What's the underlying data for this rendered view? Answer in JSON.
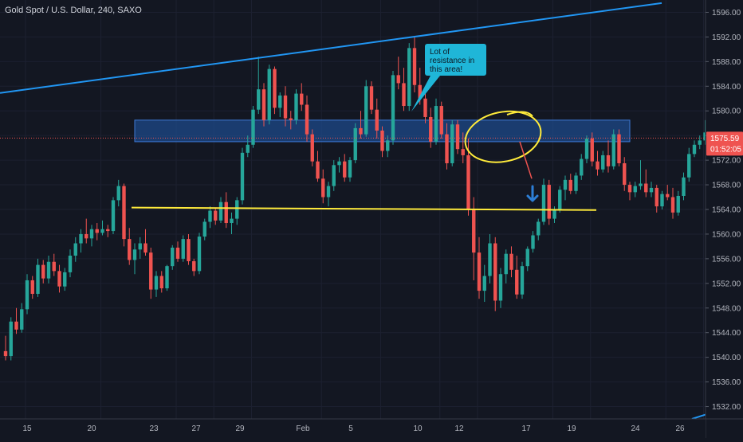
{
  "header": {
    "symbol_title": "Gold Spot / U.S. Dollar, 240, SAXO"
  },
  "colors": {
    "background": "#131722",
    "up": "#26a69a",
    "down": "#ef5350",
    "trendline": "#2196f3",
    "support": "#ffeb3b",
    "zone": "#1e4a8a",
    "price_label": "#ef5350",
    "callout": "#1fb6d8"
  },
  "annotations": {
    "callout_text": "Lot of resistance in this area!",
    "current_price": "1575.59",
    "countdown": "01:52:05"
  },
  "chart_data": {
    "type": "candlestick",
    "title": "Gold Spot / U.S. Dollar, 240, SAXO",
    "ylim": [
      1530,
      1598
    ],
    "y_ticks": [
      "1532.00",
      "1536.00",
      "1540.00",
      "1544.00",
      "1548.00",
      "1552.00",
      "1556.00",
      "1560.00",
      "1564.00",
      "1568.00",
      "1572.00",
      "1576.00",
      "1580.00",
      "1584.00",
      "1588.00",
      "1592.00",
      "1596.00"
    ],
    "y_tick_values": [
      1532,
      1536,
      1540,
      1544,
      1548,
      1552,
      1556,
      1560,
      1564,
      1568,
      1572,
      1576,
      1580,
      1584,
      1588,
      1592,
      1596
    ],
    "x_ticks": [
      "15",
      "20",
      "23",
      "27",
      "29",
      "Feb",
      "5",
      "10",
      "12",
      "17",
      "19",
      "24",
      "26"
    ],
    "x_tick_index": [
      0,
      14,
      28,
      35,
      42,
      55,
      66,
      77,
      84,
      98,
      105,
      119,
      126
    ],
    "n_slots": 137,
    "candles": [
      [
        1541.0,
        1543.5,
        1539.5,
        1540.2
      ],
      [
        1540.2,
        1546.5,
        1539.5,
        1545.8
      ],
      [
        1545.8,
        1548.0,
        1543.8,
        1544.5
      ],
      [
        1544.5,
        1548.8,
        1544.0,
        1547.8
      ],
      [
        1547.8,
        1553.5,
        1547.0,
        1552.5
      ],
      [
        1552.5,
        1553.2,
        1549.5,
        1550.3
      ],
      [
        1550.3,
        1556.0,
        1549.8,
        1555.0
      ],
      [
        1555.0,
        1555.8,
        1552.0,
        1552.8
      ],
      [
        1552.8,
        1556.5,
        1552.0,
        1555.5
      ],
      [
        1555.5,
        1556.8,
        1553.2,
        1554.0
      ],
      [
        1554.0,
        1555.0,
        1550.5,
        1551.5
      ],
      [
        1551.5,
        1554.5,
        1550.8,
        1553.8
      ],
      [
        1553.8,
        1557.5,
        1553.0,
        1556.5
      ],
      [
        1556.5,
        1559.5,
        1555.5,
        1558.5
      ],
      [
        1558.5,
        1560.8,
        1557.0,
        1560.0
      ],
      [
        1560.0,
        1562.5,
        1558.5,
        1559.3
      ],
      [
        1559.3,
        1561.5,
        1558.0,
        1560.8
      ],
      [
        1560.8,
        1561.8,
        1559.0,
        1560.2
      ],
      [
        1560.2,
        1562.2,
        1559.8,
        1560.8
      ],
      [
        1560.8,
        1561.5,
        1559.5,
        1560.5
      ],
      [
        1560.5,
        1566.0,
        1560.0,
        1565.5
      ],
      [
        1565.5,
        1568.8,
        1564.5,
        1567.8
      ],
      [
        1567.8,
        1568.2,
        1558.0,
        1559.2
      ],
      [
        1559.2,
        1561.0,
        1555.0,
        1555.8
      ],
      [
        1555.8,
        1558.5,
        1553.5,
        1557.5
      ],
      [
        1557.5,
        1559.5,
        1556.0,
        1558.5
      ],
      [
        1558.5,
        1560.8,
        1556.5,
        1557.0
      ],
      [
        1557.0,
        1557.8,
        1549.5,
        1551.0
      ],
      [
        1551.0,
        1554.0,
        1549.8,
        1553.2
      ],
      [
        1553.2,
        1554.0,
        1550.5,
        1551.2
      ],
      [
        1551.2,
        1555.0,
        1550.8,
        1554.8
      ],
      [
        1554.8,
        1558.2,
        1554.2,
        1557.8
      ],
      [
        1557.8,
        1558.8,
        1555.5,
        1556.0
      ],
      [
        1556.0,
        1559.8,
        1555.5,
        1559.2
      ],
      [
        1559.2,
        1560.0,
        1555.0,
        1555.6
      ],
      [
        1555.6,
        1556.0,
        1553.2,
        1554.0
      ],
      [
        1554.0,
        1560.2,
        1553.5,
        1559.6
      ],
      [
        1559.6,
        1562.5,
        1559.0,
        1562.0
      ],
      [
        1562.0,
        1564.5,
        1561.0,
        1563.8
      ],
      [
        1563.8,
        1564.2,
        1561.5,
        1562.2
      ],
      [
        1562.2,
        1566.0,
        1561.8,
        1565.2
      ],
      [
        1565.2,
        1566.8,
        1561.0,
        1561.8
      ],
      [
        1561.8,
        1563.5,
        1560.0,
        1562.5
      ],
      [
        1562.5,
        1566.0,
        1561.5,
        1565.5
      ],
      [
        1565.5,
        1574.0,
        1564.8,
        1573.2
      ],
      [
        1573.2,
        1576.0,
        1572.5,
        1574.5
      ],
      [
        1574.5,
        1580.8,
        1574.0,
        1580.2
      ],
      [
        1580.2,
        1588.8,
        1579.5,
        1583.5
      ],
      [
        1583.5,
        1584.5,
        1577.5,
        1578.5
      ],
      [
        1578.5,
        1587.5,
        1577.8,
        1586.8
      ],
      [
        1586.8,
        1587.2,
        1579.5,
        1580.5
      ],
      [
        1580.5,
        1583.0,
        1579.0,
        1582.5
      ],
      [
        1582.5,
        1584.0,
        1577.5,
        1578.8
      ],
      [
        1578.8,
        1580.0,
        1577.0,
        1578.5
      ],
      [
        1578.5,
        1583.5,
        1577.8,
        1582.8
      ],
      [
        1582.8,
        1584.5,
        1580.0,
        1581.0
      ],
      [
        1581.0,
        1582.5,
        1575.0,
        1576.2
      ],
      [
        1576.2,
        1577.0,
        1571.0,
        1571.8
      ],
      [
        1571.8,
        1573.5,
        1568.5,
        1569.0
      ],
      [
        1569.0,
        1570.5,
        1565.0,
        1566.0
      ],
      [
        1566.0,
        1568.5,
        1564.5,
        1567.8
      ],
      [
        1567.8,
        1572.0,
        1567.0,
        1571.2
      ],
      [
        1571.2,
        1572.5,
        1570.0,
        1571.8
      ],
      [
        1571.8,
        1573.0,
        1568.5,
        1569.2
      ],
      [
        1569.2,
        1572.5,
        1568.5,
        1572.0
      ],
      [
        1572.0,
        1578.0,
        1571.5,
        1577.2
      ],
      [
        1577.2,
        1580.0,
        1575.5,
        1576.2
      ],
      [
        1576.2,
        1585.0,
        1575.8,
        1584.0
      ],
      [
        1584.0,
        1584.8,
        1579.5,
        1580.2
      ],
      [
        1580.2,
        1582.0,
        1575.5,
        1576.8
      ],
      [
        1576.8,
        1577.5,
        1572.5,
        1573.5
      ],
      [
        1573.5,
        1576.0,
        1572.5,
        1575.2
      ],
      [
        1575.2,
        1586.5,
        1574.5,
        1585.8
      ],
      [
        1585.8,
        1588.8,
        1583.5,
        1584.5
      ],
      [
        1584.5,
        1587.0,
        1580.0,
        1580.8
      ],
      [
        1580.8,
        1591.0,
        1580.0,
        1590.2
      ],
      [
        1590.2,
        1592.0,
        1583.0,
        1584.2
      ],
      [
        1584.2,
        1587.0,
        1581.0,
        1582.0
      ],
      [
        1582.0,
        1583.0,
        1578.0,
        1579.0
      ],
      [
        1579.0,
        1580.5,
        1574.0,
        1575.0
      ],
      [
        1575.0,
        1582.0,
        1574.5,
        1580.8
      ],
      [
        1580.8,
        1581.5,
        1575.5,
        1576.2
      ],
      [
        1576.2,
        1578.0,
        1570.5,
        1571.5
      ],
      [
        1571.5,
        1578.5,
        1571.0,
        1577.8
      ],
      [
        1577.8,
        1578.5,
        1573.0,
        1573.8
      ],
      [
        1573.8,
        1576.5,
        1571.5,
        1572.8
      ],
      [
        1572.8,
        1575.5,
        1563.0,
        1564.0
      ],
      [
        1564.0,
        1566.0,
        1552.5,
        1557.0
      ],
      [
        1557.0,
        1559.5,
        1549.5,
        1550.8
      ],
      [
        1550.8,
        1555.0,
        1549.0,
        1553.2
      ],
      [
        1553.2,
        1560.0,
        1552.0,
        1558.5
      ],
      [
        1558.5,
        1559.5,
        1547.5,
        1549.2
      ],
      [
        1549.2,
        1554.5,
        1548.0,
        1553.5
      ],
      [
        1553.5,
        1557.5,
        1552.0,
        1556.8
      ],
      [
        1556.8,
        1558.0,
        1553.0,
        1554.2
      ],
      [
        1554.2,
        1556.5,
        1549.5,
        1550.2
      ],
      [
        1550.2,
        1555.5,
        1549.5,
        1554.8
      ],
      [
        1554.8,
        1558.0,
        1554.0,
        1557.6
      ],
      [
        1557.6,
        1560.5,
        1557.0,
        1559.8
      ],
      [
        1559.8,
        1562.5,
        1559.0,
        1562.0
      ],
      [
        1562.0,
        1569.0,
        1561.5,
        1568.0
      ],
      [
        1568.0,
        1568.8,
        1561.5,
        1562.5
      ],
      [
        1562.5,
        1564.5,
        1561.8,
        1564.0
      ],
      [
        1564.0,
        1567.8,
        1563.5,
        1567.2
      ],
      [
        1567.2,
        1569.5,
        1565.5,
        1568.8
      ],
      [
        1568.8,
        1569.8,
        1566.5,
        1567.0
      ],
      [
        1567.0,
        1570.0,
        1566.5,
        1569.5
      ],
      [
        1569.5,
        1573.0,
        1568.8,
        1572.2
      ],
      [
        1572.2,
        1576.0,
        1571.5,
        1575.5
      ],
      [
        1575.5,
        1576.5,
        1571.0,
        1571.8
      ],
      [
        1571.8,
        1573.5,
        1569.5,
        1570.5
      ],
      [
        1570.5,
        1573.5,
        1570.0,
        1572.8
      ],
      [
        1572.8,
        1575.2,
        1570.0,
        1571.0
      ],
      [
        1571.0,
        1577.0,
        1570.5,
        1576.2
      ],
      [
        1576.2,
        1577.0,
        1571.0,
        1571.5
      ],
      [
        1571.5,
        1572.5,
        1567.0,
        1568.0
      ],
      [
        1568.0,
        1568.5,
        1565.5,
        1566.8
      ],
      [
        1566.8,
        1568.5,
        1566.0,
        1567.8
      ],
      [
        1567.8,
        1572.0,
        1567.2,
        1568.2
      ],
      [
        1568.2,
        1570.5,
        1566.0,
        1566.8
      ],
      [
        1566.8,
        1568.5,
        1566.0,
        1567.5
      ],
      [
        1567.5,
        1568.0,
        1563.5,
        1564.5
      ],
      [
        1564.5,
        1567.0,
        1564.0,
        1566.5
      ],
      [
        1566.5,
        1568.0,
        1565.5,
        1566.0
      ],
      [
        1566.0,
        1567.5,
        1562.5,
        1563.5
      ],
      [
        1563.5,
        1567.0,
        1563.0,
        1566.2
      ],
      [
        1566.2,
        1570.0,
        1565.5,
        1569.2
      ],
      [
        1569.2,
        1574.0,
        1568.5,
        1573.0
      ],
      [
        1573.0,
        1575.2,
        1572.5,
        1574.5
      ],
      [
        1574.5,
        1576.0,
        1573.8,
        1575.2
      ],
      [
        1575.2,
        1578.5,
        1574.5,
        1576.5
      ],
      [
        1576.5,
        1577.5,
        1574.8,
        1575.2
      ],
      [
        1575.2,
        1576.8,
        1574.5,
        1576.2
      ],
      [
        1576.2,
        1577.0,
        1575.0,
        1575.5
      ],
      [
        1575.5,
        1576.5,
        1573.5,
        1574.2
      ],
      [
        1574.2,
        1576.2,
        1573.8,
        1575.59
      ]
    ]
  }
}
